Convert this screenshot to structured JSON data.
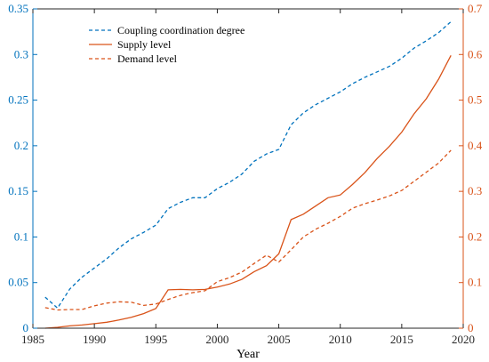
{
  "chart_data": {
    "type": "line",
    "xlabel": "Year",
    "ylabel_left": "",
    "ylabel_right": "",
    "xlim": [
      1985,
      2020
    ],
    "ylim_left": [
      0,
      0.35
    ],
    "ylim_right": [
      0,
      0.7
    ],
    "x_ticks": [
      "1985",
      "1990",
      "1995",
      "2000",
      "2005",
      "2010",
      "2015",
      "2020"
    ],
    "y_left_ticks": [
      "0",
      "0.05",
      "0.1",
      "0.15",
      "0.2",
      "0.25",
      "0.3",
      "0.35"
    ],
    "y_right_ticks": [
      "0",
      "0.1",
      "0.2",
      "0.3",
      "0.4",
      "0.5",
      "0.6",
      "0.7"
    ],
    "grid": false,
    "legend_position": "top-left",
    "series": [
      {
        "name": "Coupling coordination degree",
        "axis": "left",
        "style": "dashed",
        "color": "#0072BD",
        "x": [
          1986,
          1987,
          1988,
          1989,
          1990,
          1991,
          1992,
          1993,
          1994,
          1995,
          1996,
          1997,
          1998,
          1999,
          2000,
          2001,
          2002,
          2003,
          2004,
          2005,
          2006,
          2007,
          2008,
          2009,
          2010,
          2011,
          2012,
          2013,
          2014,
          2015,
          2016,
          2017,
          2018,
          2019
        ],
        "y": [
          0.034,
          0.022,
          0.043,
          0.056,
          0.066,
          0.076,
          0.088,
          0.098,
          0.105,
          0.113,
          0.131,
          0.138,
          0.143,
          0.143,
          0.153,
          0.16,
          0.169,
          0.183,
          0.191,
          0.196,
          0.223,
          0.236,
          0.245,
          0.252,
          0.259,
          0.268,
          0.275,
          0.281,
          0.287,
          0.296,
          0.307,
          0.315,
          0.324,
          0.336
        ]
      },
      {
        "name": "Supply level",
        "axis": "right",
        "style": "solid",
        "color": "#D95319",
        "x": [
          1986,
          1987,
          1988,
          1989,
          1990,
          1991,
          1992,
          1993,
          1994,
          1995,
          1996,
          1997,
          1998,
          1999,
          2000,
          2001,
          2002,
          2003,
          2004,
          2005,
          2006,
          2007,
          2008,
          2009,
          2010,
          2011,
          2012,
          2013,
          2014,
          2015,
          2016,
          2017,
          2018,
          2019
        ],
        "y": [
          0.0,
          0.002,
          0.005,
          0.007,
          0.01,
          0.013,
          0.018,
          0.024,
          0.032,
          0.043,
          0.084,
          0.085,
          0.084,
          0.085,
          0.09,
          0.097,
          0.107,
          0.124,
          0.137,
          0.163,
          0.238,
          0.25,
          0.268,
          0.286,
          0.292,
          0.315,
          0.341,
          0.372,
          0.399,
          0.43,
          0.47,
          0.503,
          0.546,
          0.598
        ]
      },
      {
        "name": "Demand level",
        "axis": "right",
        "style": "dashed",
        "color": "#D95319",
        "x": [
          1986,
          1987,
          1988,
          1989,
          1990,
          1991,
          1992,
          1993,
          1994,
          1995,
          1996,
          1997,
          1998,
          1999,
          2000,
          2001,
          2002,
          2003,
          2004,
          2005,
          2006,
          2007,
          2008,
          2009,
          2010,
          2011,
          2012,
          2013,
          2014,
          2015,
          2016,
          2017,
          2018,
          2019
        ],
        "y": [
          0.045,
          0.04,
          0.041,
          0.041,
          0.049,
          0.055,
          0.058,
          0.057,
          0.05,
          0.053,
          0.063,
          0.072,
          0.078,
          0.082,
          0.102,
          0.111,
          0.123,
          0.142,
          0.16,
          0.145,
          0.172,
          0.2,
          0.217,
          0.23,
          0.245,
          0.263,
          0.273,
          0.281,
          0.29,
          0.302,
          0.322,
          0.342,
          0.362,
          0.39
        ]
      }
    ]
  }
}
